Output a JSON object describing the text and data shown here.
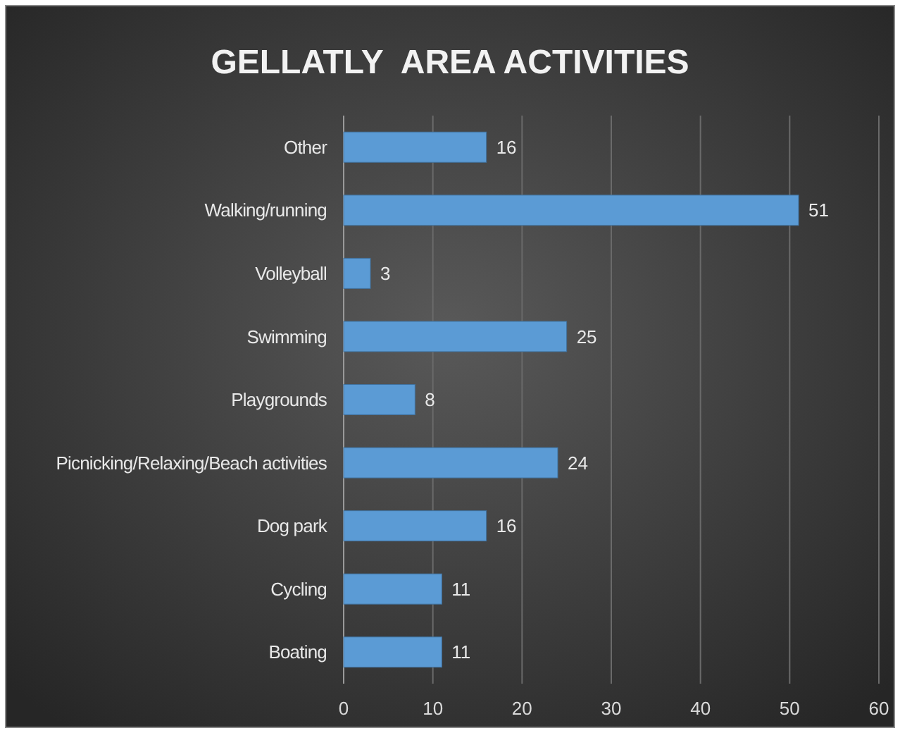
{
  "chart_data": {
    "type": "bar",
    "orientation": "horizontal",
    "title": "GELLATLY  AREA ACTIVITIES",
    "categories": [
      "Other",
      "Walking/running",
      "Volleyball",
      "Swimming",
      "Playgrounds",
      "Picnicking/Relaxing/Beach activities",
      "Dog park",
      "Cycling",
      "Boating"
    ],
    "values": [
      16,
      51,
      3,
      25,
      8,
      24,
      16,
      11,
      11
    ],
    "color": "#5b9bd5",
    "xlim": [
      0,
      60
    ],
    "xticks": [
      0,
      10,
      20,
      30,
      40,
      50,
      60
    ],
    "grid": "x",
    "data_labels": true
  }
}
